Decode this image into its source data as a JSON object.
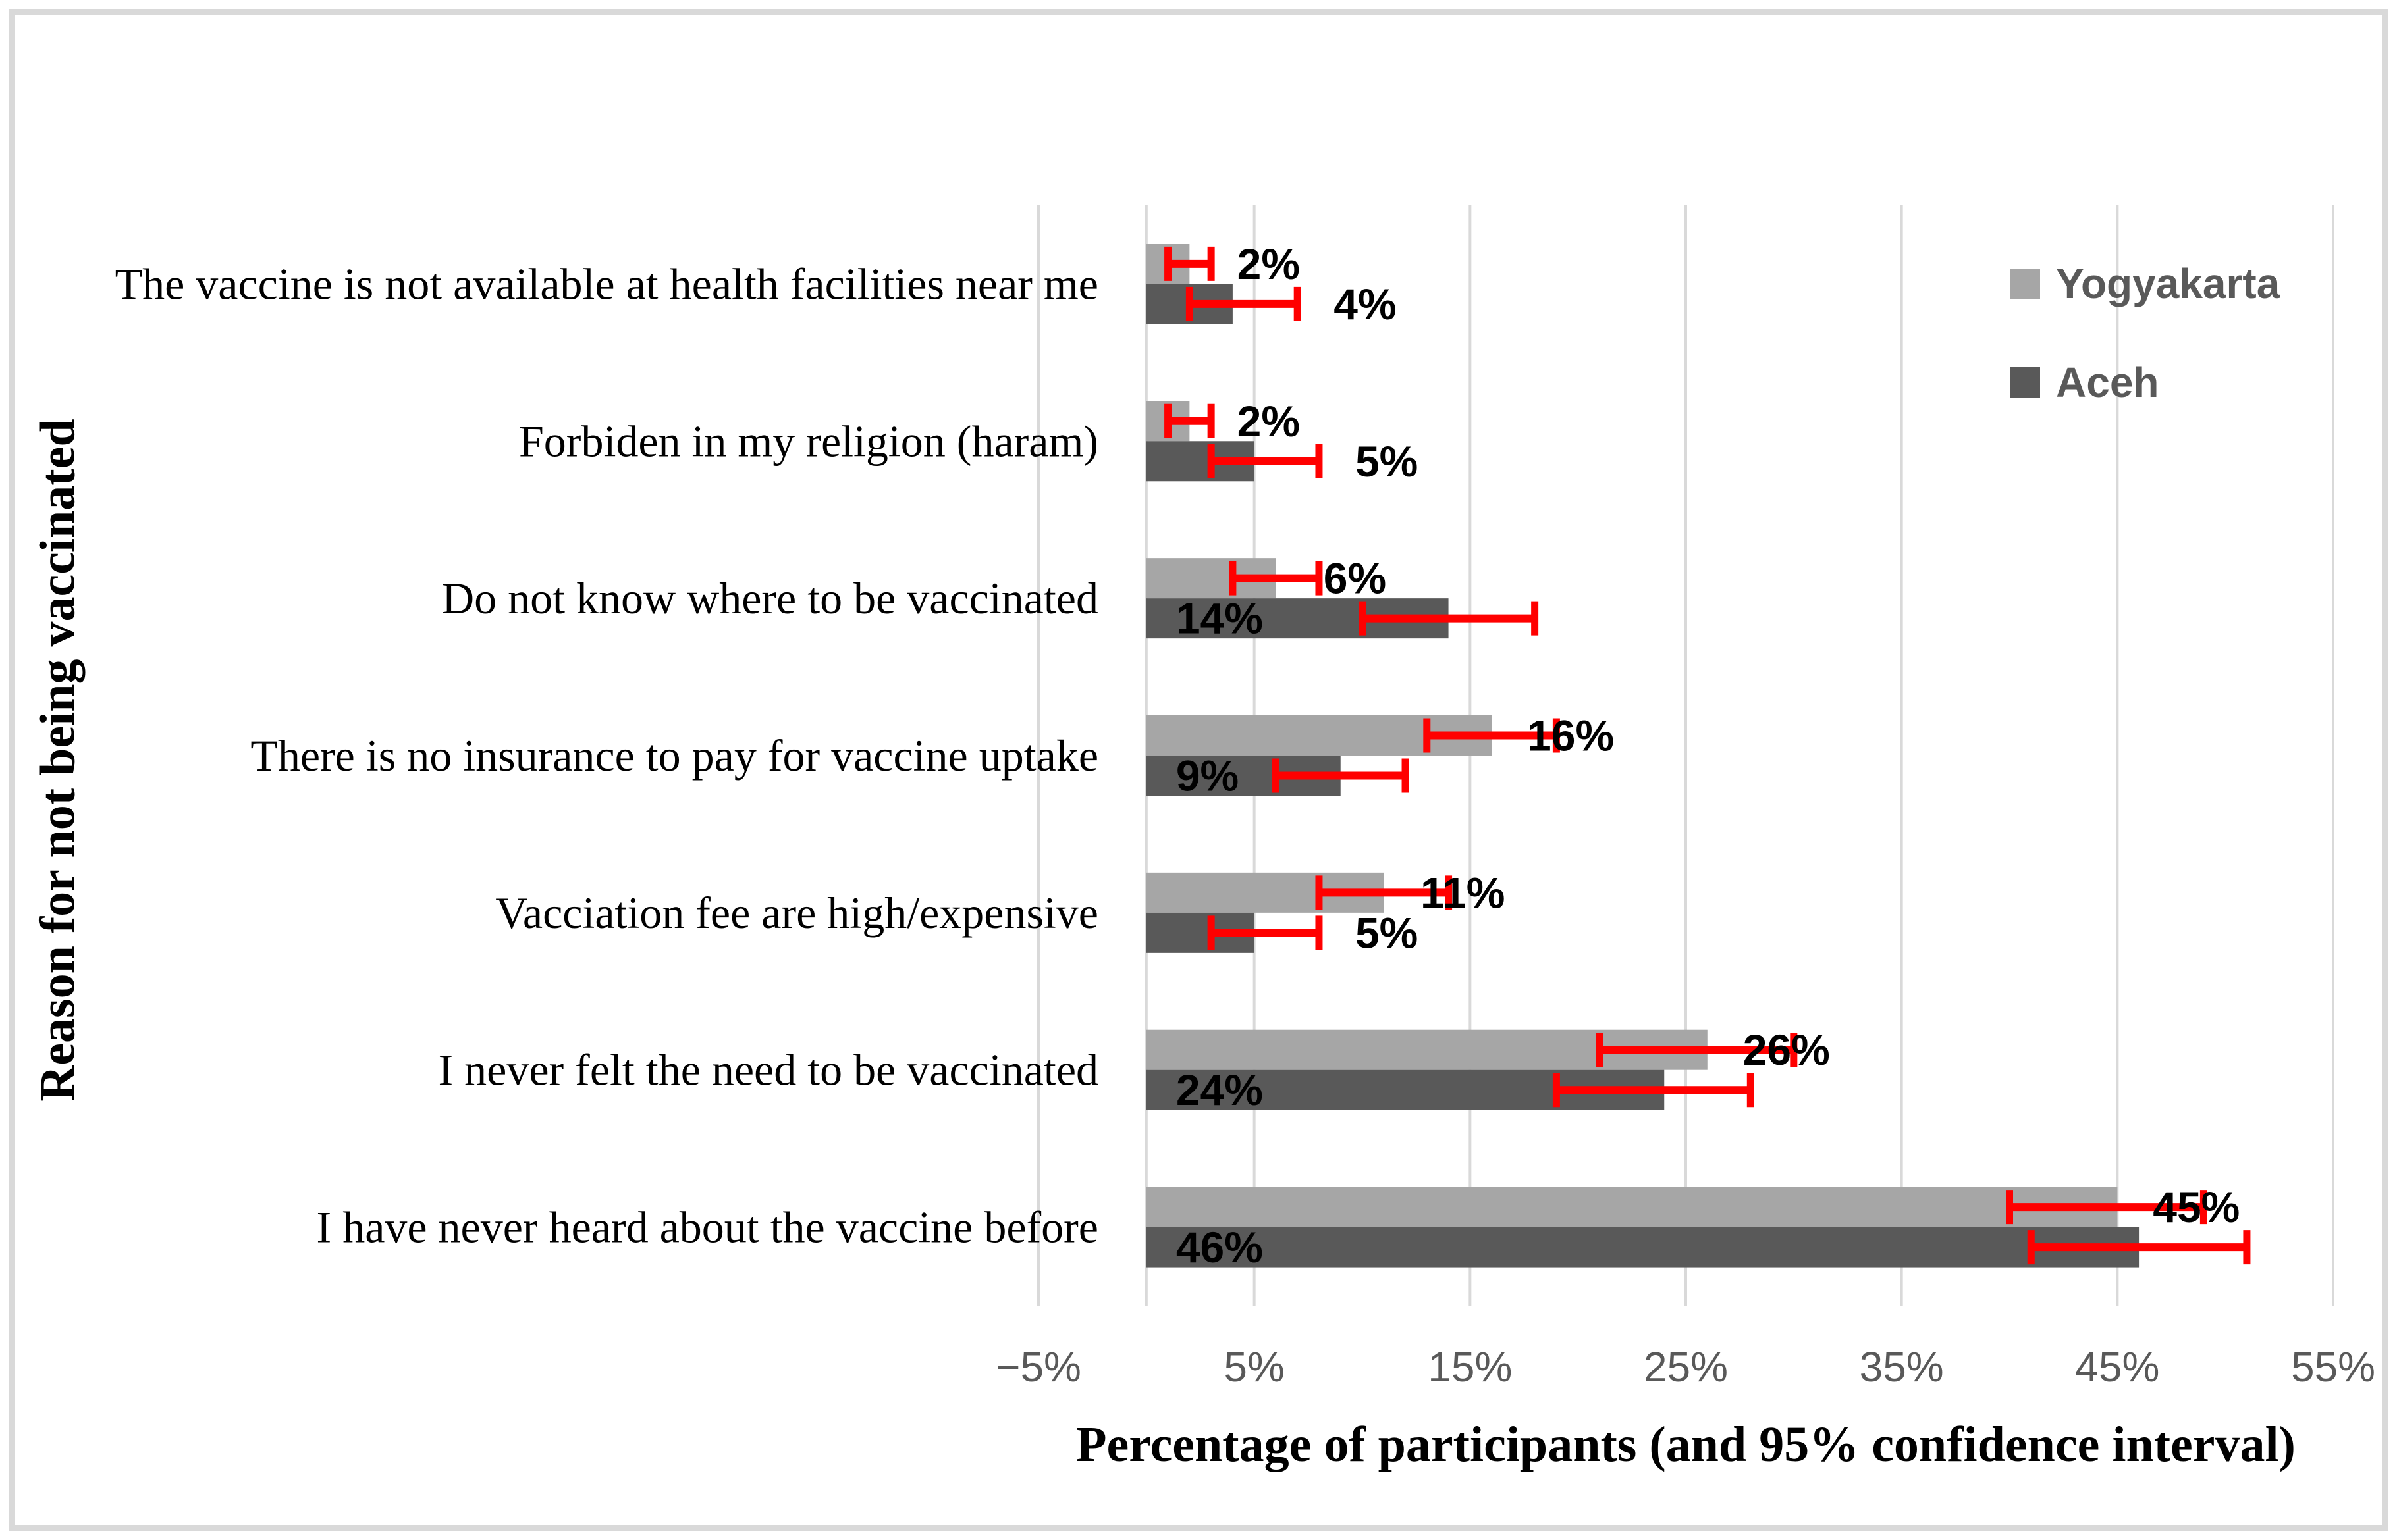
{
  "frame": {
    "background": "#ffffff",
    "border_color": "#d9d9d9"
  },
  "legend": {
    "position": "top-right",
    "text_color": "#595959",
    "items": [
      {
        "label": "Yogyakarta",
        "color": "#a6a6a6"
      },
      {
        "label": "Aceh",
        "color": "#595959"
      }
    ]
  },
  "chart_data": {
    "type": "bar",
    "orientation": "horizontal",
    "title": "",
    "xlabel": "Percentage of participants (and 95% confidence interval)",
    "ylabel": "Reason for not being vaccinated",
    "xlim": [
      -5,
      55
    ],
    "xtick_values": [
      -5,
      5,
      15,
      25,
      35,
      45,
      55
    ],
    "xtick_labels": [
      "−5%",
      "5%",
      "15%",
      "25%",
      "35%",
      "45%",
      "55%"
    ],
    "gridline_values": [
      -5,
      0,
      5,
      15,
      25,
      35,
      45,
      55
    ],
    "grid": "vertical",
    "legend_position": "top-right",
    "categories": [
      "The vaccine is not available at health facilities near me",
      "Forbiden in my religion (haram)",
      "Do not know where to be vaccinated",
      "There is no insurance to pay for vaccine uptake",
      "Vacciation fee are high/expensive",
      "I never felt the need to be vaccinated",
      "I have never heard about the vaccine before"
    ],
    "series": [
      {
        "name": "Yogyakarta",
        "color": "#a6a6a6",
        "values": [
          2,
          2,
          6,
          16,
          11,
          26,
          45
        ],
        "labels": [
          "2%",
          "2%",
          "6%",
          "16%",
          "11%",
          "26%",
          "45%"
        ],
        "ci_low": [
          1,
          1,
          4,
          13,
          8,
          21,
          40
        ],
        "ci_high": [
          3,
          3,
          8,
          19,
          14,
          30,
          49
        ],
        "label_inside": [
          false,
          false,
          false,
          false,
          false,
          false,
          false
        ]
      },
      {
        "name": "Aceh",
        "color": "#595959",
        "values": [
          4,
          5,
          14,
          9,
          5,
          24,
          46
        ],
        "labels": [
          "4%",
          "5%",
          "14%",
          "9%",
          "5%",
          "24%",
          "46%"
        ],
        "ci_low": [
          2,
          3,
          10,
          6,
          3,
          19,
          41
        ],
        "ci_high": [
          7,
          8,
          18,
          12,
          8,
          28,
          51
        ],
        "label_inside": [
          false,
          false,
          true,
          true,
          false,
          true,
          true
        ]
      }
    ],
    "error_bar_color": "#ff0000",
    "data_label_color": "#000000",
    "tick_label_color": "#595959",
    "category_label_color": "#000000",
    "gridline_color": "#d9d9d9"
  }
}
